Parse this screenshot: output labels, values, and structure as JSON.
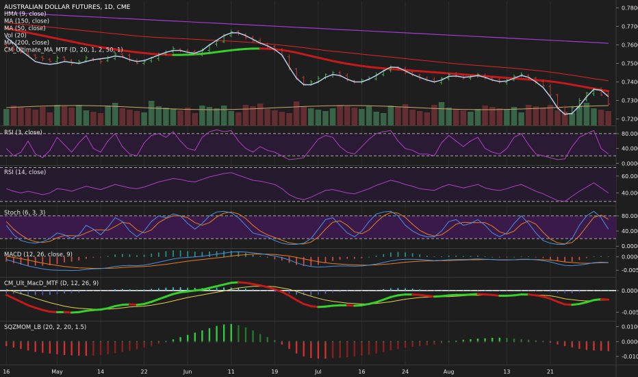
{
  "chart_title": "AUSTRALIAN DOLLAR FUTURES, 1D, CME",
  "colors": {
    "background": "#1e1e1e",
    "bull_bar": "#4caf50",
    "bear_bar": "#c0392b",
    "hma": "#b4d0ec",
    "ma150": "#e02424",
    "ma50_up": "#37d12c",
    "ma50_down": "#c41a1a",
    "ma200": "#a23bd6",
    "rsi_line": "#b03fc4",
    "stoch_k": "#4a90e2",
    "stoch_d": "#e67e22",
    "macd_line": "#4a90e2",
    "macd_signal": "#e67e22"
  },
  "x_axis": {
    "labels": [
      "16",
      "May",
      "14",
      "22",
      "Jun",
      "11",
      "19",
      "Jul",
      "16",
      "24",
      "Aug",
      "13",
      "21"
    ]
  },
  "panes": [
    {
      "id": "price",
      "legend": [
        "HMA (9, close)",
        "MA (150, close)",
        "MA (50, close)",
        "Vol (20)",
        "MA (200, close)",
        "CM_Ultimate_MA_MTF (D, 20, 1, 2, 50, 1)"
      ],
      "ticks": [
        "0.7800",
        "0.7700",
        "0.7600",
        "0.7500",
        "0.7400",
        "0.7300",
        "0.7200"
      ]
    },
    {
      "id": "rsi3",
      "legend": [
        "RSI (3, close)"
      ],
      "ticks": [
        "80.0000",
        "40.0000",
        "0.0000"
      ]
    },
    {
      "id": "rsi14",
      "legend": [
        "RSI (14, close)"
      ],
      "ticks": [
        "60.0000",
        "40.0000"
      ]
    },
    {
      "id": "stoch",
      "legend": [
        "Stoch (6, 3, 3)"
      ],
      "ticks": [
        "80.0000",
        "40.0000",
        "0.0000"
      ]
    },
    {
      "id": "macd",
      "legend": [
        "MACD (12, 26, close, 9)"
      ],
      "ticks": [
        "0.0000",
        "-0.0050"
      ]
    },
    {
      "id": "cmmacd",
      "legend": [
        "CM_Ult_MacD_MTF (D, 12, 26, 9)"
      ],
      "ticks": [
        "0.0000",
        "-0.0050"
      ]
    },
    {
      "id": "sqz",
      "legend": [
        "SQZMOM_LB (20, 2, 20, 1.5)"
      ],
      "ticks": [
        "0.0100",
        "0.0000",
        "-0.0100"
      ]
    }
  ],
  "chart_data": {
    "type": "candlestick",
    "title": "AUSTRALIAN DOLLAR FUTURES, 1D, CME",
    "x_labels": [
      "16",
      "May",
      "14",
      "22",
      "Jun",
      "11",
      "19",
      "Jul",
      "16",
      "24",
      "Aug",
      "13",
      "21"
    ],
    "ylim": [
      0.7165,
      0.7835
    ],
    "close": [
      0.759,
      0.7575,
      0.756,
      0.7545,
      0.753,
      0.7525,
      0.751,
      0.753,
      0.752,
      0.75,
      0.751,
      0.753,
      0.752,
      0.751,
      0.753,
      0.755,
      0.754,
      0.752,
      0.75,
      0.751,
      0.753,
      0.755,
      0.756,
      0.758,
      0.757,
      0.756,
      0.755,
      0.757,
      0.76,
      0.762,
      0.765,
      0.767,
      0.766,
      0.764,
      0.762,
      0.761,
      0.759,
      0.757,
      0.754,
      0.747,
      0.742,
      0.739,
      0.74,
      0.742,
      0.744,
      0.745,
      0.743,
      0.741,
      0.74,
      0.741,
      0.742,
      0.744,
      0.746,
      0.748,
      0.747,
      0.745,
      0.744,
      0.742,
      0.741,
      0.74,
      0.742,
      0.744,
      0.743,
      0.742,
      0.743,
      0.744,
      0.742,
      0.741,
      0.74,
      0.741,
      0.743,
      0.744,
      0.742,
      0.74,
      0.738,
      0.733,
      0.726,
      0.723,
      0.726,
      0.73,
      0.734,
      0.736,
      0.733,
      0.728
    ],
    "series": [
      {
        "name": "HMA (9, close)",
        "values": [
          0.764,
          0.761,
          0.757,
          0.754,
          0.751,
          0.75,
          0.7495,
          0.75,
          0.751,
          0.7505,
          0.75,
          0.751,
          0.752,
          0.7525,
          0.753,
          0.754,
          0.7535,
          0.752,
          0.751,
          0.7515,
          0.753,
          0.7545,
          0.756,
          0.757,
          0.757,
          0.756,
          0.7555,
          0.757,
          0.76,
          0.7625,
          0.765,
          0.7665,
          0.7665,
          0.765,
          0.763,
          0.761,
          0.7595,
          0.7575,
          0.7545,
          0.748,
          0.742,
          0.7385,
          0.7385,
          0.74,
          0.7425,
          0.744,
          0.7435,
          0.7415,
          0.74,
          0.74,
          0.7415,
          0.7435,
          0.746,
          0.748,
          0.7478,
          0.746,
          0.744,
          0.7425,
          0.741,
          0.74,
          0.741,
          0.743,
          0.7432,
          0.7425,
          0.7428,
          0.7435,
          0.7425,
          0.741,
          0.7402,
          0.7405,
          0.742,
          0.7435,
          0.7425,
          0.74,
          0.737,
          0.732,
          0.726,
          0.7225,
          0.723,
          0.727,
          0.732,
          0.736,
          0.7355,
          0.732
        ]
      },
      {
        "name": "MA (150, close)",
        "values": [
          0.772,
          0.7716,
          0.7712,
          0.7708,
          0.7704,
          0.77,
          0.7696,
          0.7692,
          0.7688,
          0.7684,
          0.768,
          0.7676,
          0.7672,
          0.7668,
          0.7664,
          0.766,
          0.7656,
          0.7652,
          0.7648,
          0.7645,
          0.7642,
          0.764,
          0.7638,
          0.7636,
          0.7634,
          0.7632,
          0.763,
          0.7628,
          0.7626,
          0.7624,
          0.7622,
          0.762,
          0.7618,
          0.7615,
          0.7612,
          0.7609,
          0.7606,
          0.7602,
          0.7598,
          0.7594,
          0.759,
          0.7585,
          0.758,
          0.7575,
          0.757,
          0.7566,
          0.7562,
          0.7558,
          0.7554,
          0.755,
          0.7546,
          0.7542,
          0.7538,
          0.7534,
          0.753,
          0.7526,
          0.7522,
          0.7518,
          0.7514,
          0.751,
          0.7506,
          0.7502,
          0.7498,
          0.7495,
          0.7492,
          0.7489,
          0.7486,
          0.7483,
          0.748,
          0.7477,
          0.7474,
          0.747,
          0.7466,
          0.7462,
          0.7458,
          0.7453,
          0.7448,
          0.7442,
          0.7436,
          0.743,
          0.7424,
          0.7418,
          0.7412,
          0.7406
        ]
      },
      {
        "name": "MA (50, close)",
        "values": [
          0.769,
          0.7682,
          0.7674,
          0.7666,
          0.7658,
          0.765,
          0.7642,
          0.7634,
          0.7626,
          0.7618,
          0.761,
          0.7602,
          0.7595,
          0.7588,
          0.7582,
          0.7576,
          0.757,
          0.7565,
          0.756,
          0.7556,
          0.7552,
          0.7549,
          0.7547,
          0.7546,
          0.7546,
          0.7547,
          0.7549,
          0.7552,
          0.7556,
          0.7561,
          0.7566,
          0.7571,
          0.7575,
          0.7578,
          0.758,
          0.758,
          0.7579,
          0.7576,
          0.7572,
          0.7566,
          0.7558,
          0.7549,
          0.754,
          0.7531,
          0.7522,
          0.7513,
          0.7505,
          0.7498,
          0.7492,
          0.7486,
          0.7481,
          0.7477,
          0.7473,
          0.747,
          0.7467,
          0.7464,
          0.7461,
          0.7458,
          0.7455,
          0.7452,
          0.7449,
          0.7446,
          0.7443,
          0.744,
          0.7437,
          0.7434,
          0.7431,
          0.7428,
          0.7425,
          0.7422,
          0.7419,
          0.7416,
          0.7413,
          0.741,
          0.7407,
          0.7403,
          0.7398,
          0.7392,
          0.7385,
          0.7378,
          0.7371,
          0.7364,
          0.7357,
          0.735
        ]
      },
      {
        "name": "MA (200, close)",
        "values": [
          0.7775,
          0.7773,
          0.7771,
          0.7769,
          0.7767,
          0.7765,
          0.7763,
          0.7761,
          0.7759,
          0.7757,
          0.7755,
          0.7753,
          0.7751,
          0.7749,
          0.7747,
          0.7745,
          0.7743,
          0.7741,
          0.7739,
          0.7737,
          0.7735,
          0.7733,
          0.7731,
          0.7729,
          0.7727,
          0.7725,
          0.7723,
          0.7721,
          0.7719,
          0.7717,
          0.7715,
          0.7713,
          0.7711,
          0.7709,
          0.7707,
          0.7705,
          0.7703,
          0.7701,
          0.7699,
          0.7697,
          0.7695,
          0.7693,
          0.7691,
          0.7689,
          0.7687,
          0.7685,
          0.7683,
          0.7681,
          0.7679,
          0.7677,
          0.7675,
          0.7673,
          0.7671,
          0.7669,
          0.7667,
          0.7665,
          0.7663,
          0.7661,
          0.7659,
          0.7657,
          0.7655,
          0.7653,
          0.7651,
          0.7649,
          0.7647,
          0.7645,
          0.7643,
          0.7641,
          0.7639,
          0.7637,
          0.7635,
          0.7633,
          0.7631,
          0.7629,
          0.7627,
          0.7625,
          0.7623,
          0.7621,
          0.7619,
          0.7617,
          0.7615,
          0.7613,
          0.7611,
          0.7609
        ]
      },
      {
        "name": "RSI (3, close)",
        "values": [
          40,
          20,
          30,
          60,
          25,
          15,
          35,
          70,
          50,
          30,
          55,
          75,
          40,
          30,
          60,
          80,
          45,
          25,
          20,
          55,
          75,
          80,
          70,
          85,
          60,
          40,
          35,
          70,
          85,
          90,
          85,
          88,
          60,
          40,
          30,
          45,
          35,
          30,
          20,
          10,
          12,
          15,
          40,
          65,
          75,
          70,
          45,
          30,
          25,
          45,
          65,
          80,
          85,
          88,
          60,
          40,
          35,
          25,
          25,
          20,
          55,
          75,
          60,
          45,
          60,
          70,
          40,
          30,
          25,
          40,
          70,
          80,
          50,
          25,
          20,
          15,
          10,
          12,
          45,
          70,
          80,
          88,
          40,
          25
        ]
      },
      {
        "name": "RSI (14, close)",
        "values": [
          45,
          42,
          40,
          42,
          40,
          38,
          40,
          45,
          44,
          42,
          45,
          48,
          46,
          44,
          47,
          50,
          48,
          46,
          45,
          47,
          50,
          53,
          55,
          57,
          56,
          54,
          53,
          56,
          59,
          61,
          63,
          64,
          61,
          58,
          55,
          54,
          52,
          50,
          45,
          38,
          34,
          32,
          35,
          39,
          43,
          44,
          42,
          40,
          39,
          42,
          45,
          49,
          52,
          55,
          53,
          50,
          48,
          45,
          44,
          43,
          47,
          50,
          48,
          46,
          48,
          50,
          46,
          44,
          43,
          45,
          48,
          50,
          46,
          42,
          39,
          35,
          31,
          30,
          36,
          42,
          47,
          52,
          46,
          40
        ]
      },
      {
        "name": "Stoch %K (6, 3, 3)",
        "values": [
          55,
          30,
          15,
          10,
          8,
          12,
          20,
          35,
          30,
          20,
          30,
          55,
          45,
          30,
          50,
          75,
          65,
          40,
          25,
          40,
          65,
          80,
          75,
          85,
          80,
          60,
          45,
          60,
          80,
          90,
          92,
          88,
          75,
          55,
          35,
          30,
          25,
          15,
          8,
          5,
          5,
          8,
          20,
          45,
          70,
          75,
          55,
          35,
          25,
          40,
          65,
          85,
          90,
          92,
          80,
          55,
          40,
          30,
          25,
          25,
          40,
          65,
          70,
          55,
          60,
          70,
          55,
          35,
          25,
          35,
          60,
          80,
          60,
          35,
          15,
          8,
          5,
          5,
          20,
          55,
          80,
          92,
          75,
          45
        ]
      },
      {
        "name": "Stoch %D (6, 3, 3)",
        "values": [
          65,
          45,
          30,
          18,
          12,
          10,
          13,
          22,
          28,
          28,
          27,
          35,
          43,
          43,
          42,
          52,
          63,
          60,
          43,
          35,
          43,
          62,
          73,
          80,
          80,
          75,
          62,
          55,
          62,
          77,
          87,
          90,
          85,
          73,
          55,
          40,
          30,
          23,
          16,
          9,
          6,
          6,
          11,
          24,
          45,
          63,
          67,
          55,
          38,
          33,
          43,
          63,
          80,
          89,
          87,
          76,
          58,
          42,
          32,
          27,
          30,
          43,
          58,
          63,
          62,
          62,
          62,
          53,
          38,
          32,
          40,
          58,
          67,
          58,
          37,
          19,
          9,
          6,
          10,
          27,
          52,
          76,
          82,
          71
        ]
      },
      {
        "name": "MACD (12, 26, close, 9)",
        "values": [
          -0.001,
          -0.0018,
          -0.0026,
          -0.0034,
          -0.004,
          -0.0045,
          -0.0049,
          -0.005,
          -0.005,
          -0.0051,
          -0.005,
          -0.0047,
          -0.0045,
          -0.0044,
          -0.0041,
          -0.0036,
          -0.0033,
          -0.0032,
          -0.0033,
          -0.0031,
          -0.0026,
          -0.002,
          -0.0014,
          -0.0008,
          -0.0004,
          -0.0002,
          0.0,
          0.0002,
          0.0006,
          0.001,
          0.0014,
          0.0018,
          0.0019,
          0.0018,
          0.0015,
          0.0012,
          0.0008,
          0.0003,
          -0.0003,
          -0.0012,
          -0.0022,
          -0.0031,
          -0.0036,
          -0.0038,
          -0.0037,
          -0.0035,
          -0.0034,
          -0.0034,
          -0.0035,
          -0.0034,
          -0.0031,
          -0.0027,
          -0.0021,
          -0.0015,
          -0.0011,
          -0.0009,
          -0.0009,
          -0.001,
          -0.0012,
          -0.0014,
          -0.0013,
          -0.0011,
          -0.001,
          -0.001,
          -0.0009,
          -0.0008,
          -0.0009,
          -0.001,
          -0.0012,
          -0.0012,
          -0.0011,
          -0.0009,
          -0.0009,
          -0.0011,
          -0.0014,
          -0.0019,
          -0.0026,
          -0.0032,
          -0.0033,
          -0.0031,
          -0.0027,
          -0.0022,
          -0.002,
          -0.0021
        ]
      },
      {
        "name": "MACD signal",
        "values": [
          0.0002,
          -0.0002,
          -0.0007,
          -0.0012,
          -0.0018,
          -0.0023,
          -0.0028,
          -0.0032,
          -0.0036,
          -0.0039,
          -0.0041,
          -0.0042,
          -0.0043,
          -0.0043,
          -0.0043,
          -0.0042,
          -0.004,
          -0.0038,
          -0.0037,
          -0.0036,
          -0.0034,
          -0.0031,
          -0.0028,
          -0.0024,
          -0.002,
          -0.0016,
          -0.0013,
          -0.001,
          -0.0007,
          -0.0004,
          -0.0001,
          0.0003,
          0.0006,
          0.0008,
          0.001,
          0.001,
          0.001,
          0.0009,
          0.0006,
          0.0003,
          -0.0002,
          -0.0008,
          -0.0013,
          -0.0018,
          -0.0022,
          -0.0025,
          -0.0027,
          -0.0029,
          -0.003,
          -0.0031,
          -0.0031,
          -0.003,
          -0.0028,
          -0.0026,
          -0.0023,
          -0.002,
          -0.0018,
          -0.0016,
          -0.0015,
          -0.0015,
          -0.0014,
          -0.0014,
          -0.0013,
          -0.0012,
          -0.0011,
          -0.0011,
          -0.001,
          -0.001,
          -0.0011,
          -0.0011,
          -0.0011,
          -0.001,
          -0.001,
          -0.001,
          -0.0011,
          -0.0012,
          -0.0015,
          -0.0019,
          -0.0021,
          -0.0023,
          -0.0024,
          -0.0023,
          -0.0022,
          -0.0022
        ]
      },
      {
        "name": "SQZMOM_LB (20, 2, 20, 1.5)",
        "values": [
          -0.003,
          -0.004,
          -0.005,
          -0.006,
          -0.007,
          -0.0075,
          -0.008,
          -0.0085,
          -0.009,
          -0.0092,
          -0.0094,
          -0.0096,
          -0.0095,
          -0.009,
          -0.0085,
          -0.0078,
          -0.007,
          -0.0062,
          -0.0052,
          -0.004,
          -0.0028,
          -0.0015,
          0.0005,
          0.0015,
          0.003,
          0.0045,
          0.006,
          0.0075,
          0.009,
          0.0105,
          0.0115,
          0.0118,
          0.011,
          0.0095,
          0.0075,
          0.005,
          0.003,
          0.001,
          -0.002,
          -0.005,
          -0.008,
          -0.01,
          -0.011,
          -0.0115,
          -0.0115,
          -0.0112,
          -0.011,
          -0.0105,
          -0.01,
          -0.0095,
          -0.0088,
          -0.008,
          -0.007,
          -0.006,
          -0.005,
          -0.0042,
          -0.0035,
          -0.003,
          -0.0025,
          -0.002,
          -0.0012,
          -0.0005,
          0.0006,
          0.0012,
          0.0016,
          0.002,
          0.0022,
          0.0025,
          0.0026,
          0.0024,
          0.002,
          0.0016,
          0.0012,
          0.0008,
          0.0004,
          -0.0008,
          -0.002,
          -0.003,
          -0.004,
          -0.005,
          -0.0056,
          -0.006,
          -0.0062,
          -0.0064
        ]
      }
    ]
  }
}
